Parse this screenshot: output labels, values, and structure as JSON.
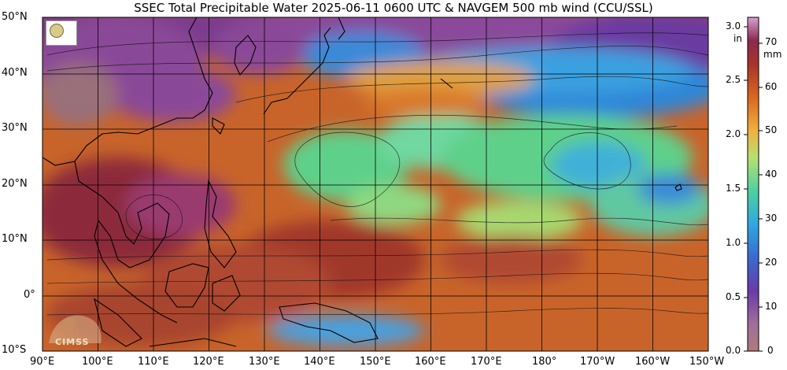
{
  "title": "SSEC Total Precipitable Water  2025-06-11 0600 UTC & NAVGEM 500 mb wind (CCU/SSL)",
  "axes": {
    "lat_labels": [
      "50°N",
      "40°N",
      "30°N",
      "20°N",
      "10°N",
      "0°",
      "10°S"
    ],
    "lon_labels": [
      "90°E",
      "100°E",
      "110°E",
      "120°E",
      "130°E",
      "140°E",
      "150°E",
      "160°E",
      "170°E",
      "180°",
      "170°W",
      "160°W",
      "150°W"
    ]
  },
  "colorbar": {
    "unit_in": "in",
    "unit_mm": "mm",
    "in_ticks": [
      "3.0",
      "2.5",
      "2.0",
      "1.5",
      "1.0",
      "0.5",
      "0.0"
    ],
    "mm_ticks": [
      "70",
      "60",
      "50",
      "40",
      "30",
      "20",
      "10",
      "0"
    ]
  },
  "logos": {
    "cimss_text": "CIMSS"
  },
  "colors": {
    "moist_maroon": "#8c2a3a",
    "moist_orange": "#d9782a",
    "mid_green": "#5fd08a",
    "dry_blue": "#2f86d8",
    "dry_purple": "#7a3a8c",
    "land_mauve": "#9a6f7a"
  }
}
